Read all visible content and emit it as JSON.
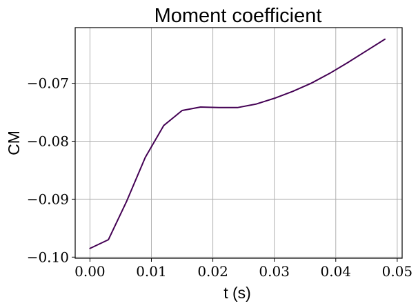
{
  "chart_data": {
    "type": "line",
    "title": "Moment coefficient",
    "xlabel": "t (s)",
    "ylabel": "CM",
    "grid": true,
    "xlim": [
      -0.0024,
      0.0508
    ],
    "ylim": [
      -0.1002,
      -0.0604
    ],
    "xticks": [
      0.0,
      0.01,
      0.02,
      0.03,
      0.04,
      0.05
    ],
    "xtick_labels": [
      "0.00",
      "0.01",
      "0.02",
      "0.03",
      "0.04",
      "0.05"
    ],
    "yticks": [
      -0.1,
      -0.09,
      -0.08,
      -0.07
    ],
    "ytick_labels": [
      "−0.10",
      "−0.09",
      "−0.08",
      "−0.07"
    ],
    "series": [
      {
        "color": "#440154",
        "x": [
          0.0,
          0.003,
          0.006,
          0.009,
          0.012,
          0.015,
          0.018,
          0.021,
          0.024,
          0.027,
          0.03,
          0.033,
          0.036,
          0.039,
          0.042,
          0.045,
          0.048
        ],
        "y": [
          -0.0985,
          -0.097,
          -0.0903,
          -0.0828,
          -0.0773,
          -0.0747,
          -0.0741,
          -0.0742,
          -0.0742,
          -0.0736,
          -0.0726,
          -0.0714,
          -0.07,
          -0.0683,
          -0.0664,
          -0.0644,
          -0.0624
        ]
      }
    ]
  }
}
